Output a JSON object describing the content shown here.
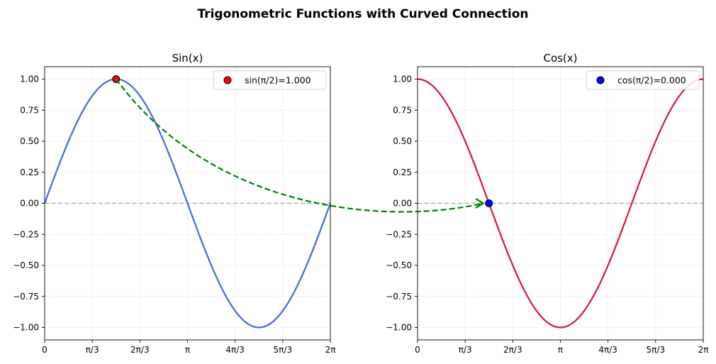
{
  "figure_title": "Trigonometric Functions with Curved Connection",
  "chart_data": [
    {
      "type": "line",
      "title": "Sin(x)",
      "function": "sin",
      "xlim": [
        0,
        6.283185307
      ],
      "ylim": [
        -1.1,
        1.1
      ],
      "x_ticks": [
        0,
        1.047198,
        2.094395,
        3.141593,
        4.18879,
        5.235988,
        6.283185
      ],
      "x_tick_labels": [
        "0",
        "π/3",
        "2π/3",
        "π",
        "4π/3",
        "5π/3",
        "2π"
      ],
      "y_ticks": [
        -1.0,
        -0.75,
        -0.5,
        -0.25,
        0.0,
        0.25,
        0.5,
        0.75,
        1.0
      ],
      "y_tick_labels": [
        "−1.00",
        "−0.75",
        "−0.50",
        "−0.25",
        "0.00",
        "0.25",
        "0.50",
        "0.75",
        "1.00"
      ],
      "grid": true,
      "reference_line_y": 0,
      "series_color": "#4169e1",
      "highlight_point": {
        "x": 1.570796,
        "y": 1.0,
        "label": "sin(π/2)=1.000",
        "color": "#ff0000"
      },
      "legend_position": "upper right"
    },
    {
      "type": "line",
      "title": "Cos(x)",
      "function": "cos",
      "xlim": [
        0,
        6.283185307
      ],
      "ylim": [
        -1.1,
        1.1
      ],
      "x_ticks": [
        0,
        1.047198,
        2.094395,
        3.141593,
        4.18879,
        5.235988,
        6.283185
      ],
      "x_tick_labels": [
        "0",
        "π/3",
        "2π/3",
        "π",
        "4π/3",
        "5π/3",
        "2π"
      ],
      "y_ticks": [
        -1.0,
        -0.75,
        -0.5,
        -0.25,
        0.0,
        0.25,
        0.5,
        0.75,
        1.0
      ],
      "y_tick_labels": [
        "−1.00",
        "−0.75",
        "−0.50",
        "−0.25",
        "0.00",
        "0.25",
        "0.50",
        "0.75",
        "1.00"
      ],
      "grid": true,
      "reference_line_y": 0,
      "series_color": "#dc143c",
      "highlight_point": {
        "x": 1.570796,
        "y": 0.0,
        "label": "cos(π/2)=0.000",
        "color": "#0000ff"
      },
      "legend_position": "upper right"
    }
  ],
  "connection": {
    "from": "sin highlight point",
    "to": "cos highlight point",
    "style": "dashed curved arrow",
    "color": "#008000"
  }
}
